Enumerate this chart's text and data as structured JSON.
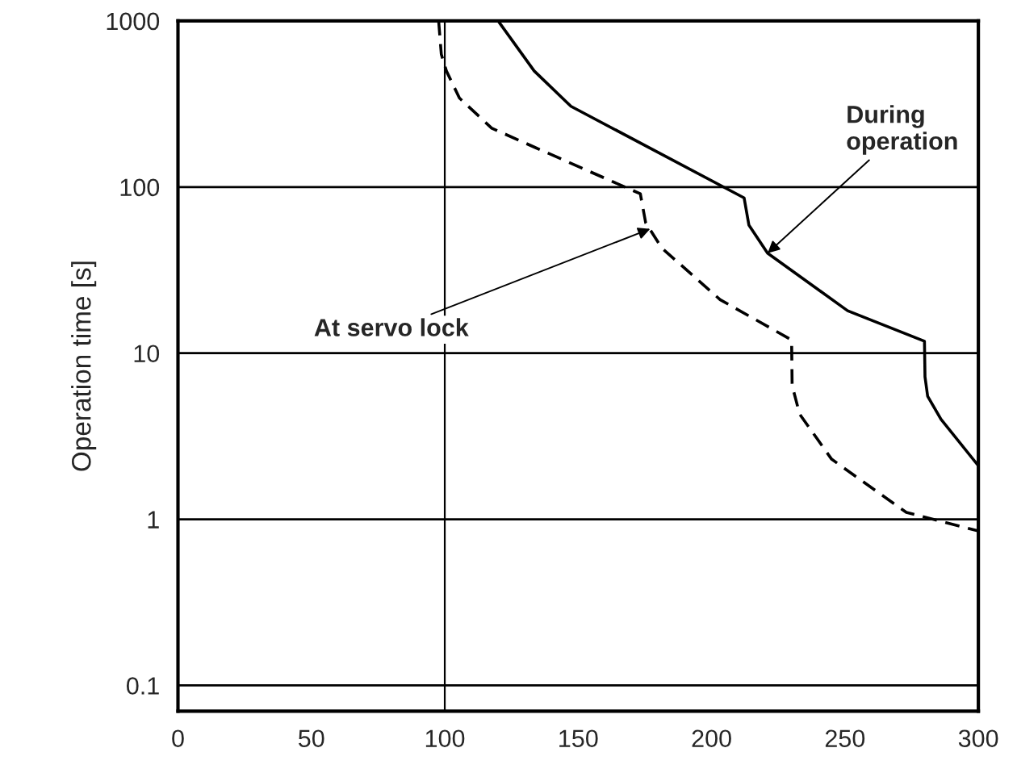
{
  "chart_data": {
    "type": "line",
    "ylabel": "Operation time [s]",
    "log": "y",
    "xlim": [
      0,
      300
    ],
    "xticks": [
      0,
      50,
      100,
      150,
      200,
      250,
      300
    ],
    "ylim": [
      0.07,
      1000
    ],
    "yticks": [
      0.1,
      1,
      10,
      100,
      1000
    ],
    "grid": "y",
    "marker": "none",
    "series": [
      {
        "color": "#000000",
        "line_style": "solid",
        "x": [
          120,
          133.5,
          147.3,
          212.2,
          214,
          221,
          251,
          279.8,
          280,
          281,
          286,
          300
        ],
        "values": [
          1000,
          500,
          306,
          86,
          59,
          40,
          18,
          11.8,
          7.2,
          5.5,
          4.0,
          2.1
        ]
      },
      {
        "color": "#000000",
        "line_style": "dashed",
        "x": [
          97.7,
          98.7,
          100.6,
          105.5,
          117.6,
          133.5,
          173.3,
          175.3,
          181.3,
          203.2,
          230,
          230.2,
          233,
          245,
          273,
          300
        ],
        "values": [
          1000,
          630,
          500,
          343,
          226,
          174,
          91,
          61,
          43,
          21,
          12,
          6.4,
          4.3,
          2.3,
          1.1,
          0.85
        ]
      }
    ],
    "ref_lines": [
      {
        "axis": "x",
        "value": 100,
        "color": "#000000"
      }
    ],
    "annotations": [
      {
        "text": "During\noperation",
        "x": 221,
        "y": 40
      },
      {
        "text": "At servo lock",
        "x": 177,
        "y": 56
      }
    ]
  }
}
